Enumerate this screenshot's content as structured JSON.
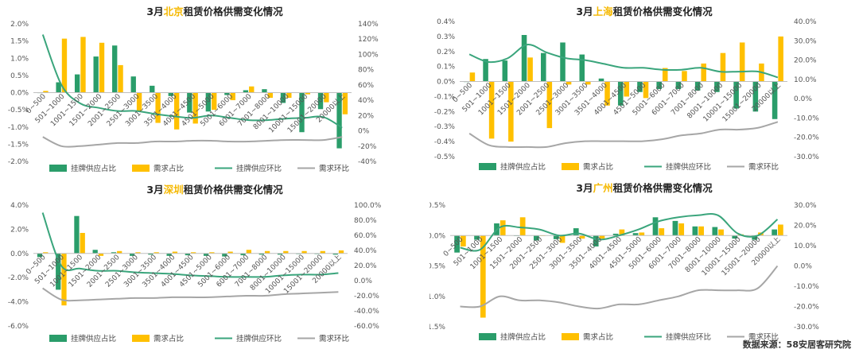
{
  "colors": {
    "supply": "#2a9d6a",
    "demand": "#ffc000",
    "supply_line": "#3aa57c",
    "demand_line": "#a6a6a6"
  },
  "legend": {
    "supply_share": "挂牌供应占比",
    "demand_share": "需求占比",
    "supply_mom": "挂牌供应环比",
    "demand_mom": "需求环比"
  },
  "source": "数据来源：58安居客研究院",
  "chart_data": [
    {
      "type": "bar+line",
      "title_prefix": "3月",
      "city": "北京",
      "title_suffix": "租赁价格供需变化情况",
      "categories": [
        "0~500",
        "501~1000",
        "1001~1500",
        "1501~2000",
        "2001~2500",
        "2501~3000",
        "3001~3500",
        "3501~4000",
        "4001~4500",
        "4501~5000",
        "5001~6000",
        "6001~7000",
        "7001~8000",
        "8001~10000",
        "10001~15000",
        "15001~20000",
        "20000以上"
      ],
      "left_ticks": [
        "2.0%",
        "1.5%",
        "1.0%",
        "0.5%",
        "0.0%",
        "-0.5%",
        "-1.0%",
        "-1.5%",
        "-2.0%"
      ],
      "right_ticks": [
        "140%",
        "120%",
        "100%",
        "80%",
        "60%",
        "40%",
        "20%",
        "0%",
        "-20%",
        "-40%"
      ],
      "ylim_left": [
        -2.0,
        2.0
      ],
      "ylim_right": [
        -40,
        140
      ],
      "series": [
        {
          "name": "挂牌供应占比",
          "values": [
            0.0,
            0.3,
            0.53,
            1.05,
            1.37,
            0.47,
            0.2,
            -0.1,
            -0.58,
            -0.55,
            -0.07,
            0.07,
            0.1,
            -0.3,
            -1.15,
            -0.48,
            -1.62
          ]
        },
        {
          "name": "需求占比",
          "values": [
            0.05,
            1.57,
            1.62,
            1.45,
            0.8,
            -0.55,
            -0.88,
            -1.07,
            -0.9,
            -0.5,
            -0.22,
            0.18,
            -0.15,
            -0.15,
            -0.05,
            -0.28,
            -0.63
          ]
        },
        {
          "name": "挂牌供应环比",
          "values": [
            126,
            60,
            36,
            30,
            26,
            26,
            22,
            19,
            17,
            20,
            17,
            14,
            14,
            16,
            17,
            18,
            4
          ]
        },
        {
          "name": "需求环比",
          "values": [
            -8,
            -20,
            -20,
            -18,
            -16,
            -16,
            -14,
            -14,
            -13,
            -13,
            -14,
            -14,
            -13,
            -12,
            -12,
            -12,
            -8
          ]
        }
      ]
    },
    {
      "type": "bar+line",
      "title_prefix": "3月",
      "city": "上海",
      "title_suffix": "租赁价格供需变化情况",
      "categories": [
        "0~500",
        "501~1000",
        "1001~1500",
        "1501~2000",
        "2001~2500",
        "2501~3000",
        "3001~3500",
        "3501~4000",
        "4001~4500",
        "4501~5000",
        "5001~6000",
        "6001~7000",
        "7001~8000",
        "8001~10000",
        "10001~15000",
        "15001~20000",
        "20000以上"
      ],
      "left_ticks": [
        "0.4%",
        "0.3%",
        "0.2%",
        "0.1%",
        "0.0%",
        "-0.1%",
        "-0.2%",
        "-0.3%",
        "-0.4%",
        "-0.5%"
      ],
      "right_ticks": [
        "40.0%",
        "30.0%",
        "20.0%",
        "10.0%",
        "0.0%",
        "-10.0%",
        "-20.0%",
        "-30.0%"
      ],
      "ylim_left": [
        -0.5,
        0.4
      ],
      "ylim_right": [
        -30,
        40
      ],
      "series": [
        {
          "name": "挂牌供应占比",
          "values": [
            0.0,
            0.15,
            0.14,
            0.31,
            0.19,
            0.26,
            0.18,
            0.02,
            -0.16,
            -0.07,
            -0.05,
            -0.05,
            -0.06,
            -0.07,
            -0.18,
            -0.2,
            -0.25
          ]
        },
        {
          "name": "需求占比",
          "values": [
            0.06,
            -0.38,
            -0.4,
            0.16,
            -0.31,
            -0.02,
            -0.02,
            -0.16,
            -0.1,
            -0.11,
            0.09,
            0.07,
            0.12,
            0.19,
            0.26,
            0.12,
            0.3
          ]
        },
        {
          "name": "挂牌供应环比",
          "values": [
            23,
            19,
            21,
            28,
            24,
            21,
            20,
            18,
            16,
            16,
            15,
            15,
            16,
            14,
            14,
            14,
            11
          ]
        },
        {
          "name": "需求环比",
          "values": [
            -18,
            -24,
            -25,
            -25,
            -25,
            -23,
            -22,
            -22,
            -22,
            -22,
            -21,
            -19,
            -18,
            -16,
            -16,
            -15,
            -12
          ]
        }
      ]
    },
    {
      "type": "bar+line",
      "title_prefix": "3月",
      "city": "深圳",
      "title_suffix": "租赁价格供需变化情况",
      "categories": [
        "0~500",
        "501~1000",
        "1001~1500",
        "1501~2000",
        "2001~2500",
        "2501~3000",
        "3001~3500",
        "3501~4000",
        "4001~4500",
        "4501~5000",
        "5001~6000",
        "6001~7000",
        "7001~8000",
        "8001~10000",
        "10001~15000",
        "15001~20000",
        "20000以上"
      ],
      "left_ticks": [
        "4.0%",
        "2.0%",
        "0.0%",
        "-2.0%",
        "-4.0%",
        "-6.0%"
      ],
      "right_ticks": [
        "100.0%",
        "80.0%",
        "60.0%",
        "40.0%",
        "20.0%",
        "0.0%",
        "-20.0%",
        "-40.0%",
        "-60.0%"
      ],
      "ylim_left": [
        -6.0,
        4.0
      ],
      "ylim_right": [
        -60,
        100
      ],
      "series": [
        {
          "name": "挂牌供应占比",
          "values": [
            -0.3,
            -3.0,
            3.1,
            0.3,
            0.1,
            -0.2,
            -0.1,
            -0.2,
            -0.15,
            -0.2,
            -0.25,
            -0.15,
            -0.1,
            -0.1,
            -0.05,
            -0.05,
            -0.1
          ]
        },
        {
          "name": "需求占比",
          "values": [
            0.1,
            -4.3,
            1.7,
            -0.2,
            0.2,
            0.1,
            0.1,
            0.15,
            0.1,
            0.1,
            0.15,
            0.3,
            0.2,
            0.2,
            0.2,
            0.2,
            0.25
          ]
        },
        {
          "name": "挂牌供应环比",
          "values": [
            90,
            20,
            16,
            13,
            13,
            11,
            10,
            9,
            7,
            6,
            5,
            5,
            5,
            7,
            8,
            8,
            10
          ]
        },
        {
          "name": "需求环比",
          "values": [
            -10,
            -25,
            -26,
            -25,
            -24,
            -23,
            -23,
            -22,
            -22,
            -22,
            -21,
            -20,
            -20,
            -18,
            -17,
            -16,
            -15
          ]
        }
      ]
    },
    {
      "type": "bar+line",
      "title_prefix": "3月",
      "city": "广州",
      "title_suffix": "租赁价格供需变化情况",
      "categories": [
        "0~500",
        "501~1000",
        "1001~1500",
        "1501~2000",
        "2001~2500",
        "2501~3000",
        "3001~3500",
        "3501~4000",
        "4001~4500",
        "4501~5000",
        "5001~6000",
        "6001~7000",
        "7001~8000",
        "8001~10000",
        "10001~15000",
        "15001~20000",
        "20000以上"
      ],
      "left_ticks": [
        "0.5%",
        "0.0%",
        "-0.5%",
        "-1.0%",
        "-1.5%"
      ],
      "right_ticks": [
        "30.0%",
        "20.0%",
        "10.0%",
        "0.0%",
        "-10.0%",
        "-20.0%",
        "-30.0%"
      ],
      "ylim_left": [
        -1.5,
        0.5
      ],
      "ylim_right": [
        -30,
        30
      ],
      "series": [
        {
          "name": "挂牌供应占比",
          "values": [
            -0.28,
            -0.07,
            0.2,
            0.0,
            -0.08,
            -0.06,
            0.12,
            -0.18,
            0.03,
            0.04,
            0.3,
            0.24,
            0.15,
            0.14,
            -0.05,
            -0.07,
            0.1
          ]
        },
        {
          "name": "需求占比",
          "values": [
            -0.18,
            -1.35,
            0.25,
            0.3,
            0.0,
            -0.12,
            -0.05,
            -0.05,
            0.1,
            0.05,
            0.12,
            0.2,
            0.15,
            0.1,
            0.02,
            0.05,
            0.18
          ]
        },
        {
          "name": "挂牌供应环比",
          "values": [
            9,
            8,
            19,
            19,
            18,
            15,
            16,
            13,
            15,
            18,
            22,
            24,
            25,
            25,
            16,
            15,
            23
          ]
        },
        {
          "name": "需求环比",
          "values": [
            -20,
            -20,
            -15,
            -17,
            -17,
            -18,
            -20,
            -21,
            -19,
            -19,
            -17,
            -15,
            -12,
            -12,
            -12,
            -11,
            0
          ]
        }
      ]
    }
  ]
}
